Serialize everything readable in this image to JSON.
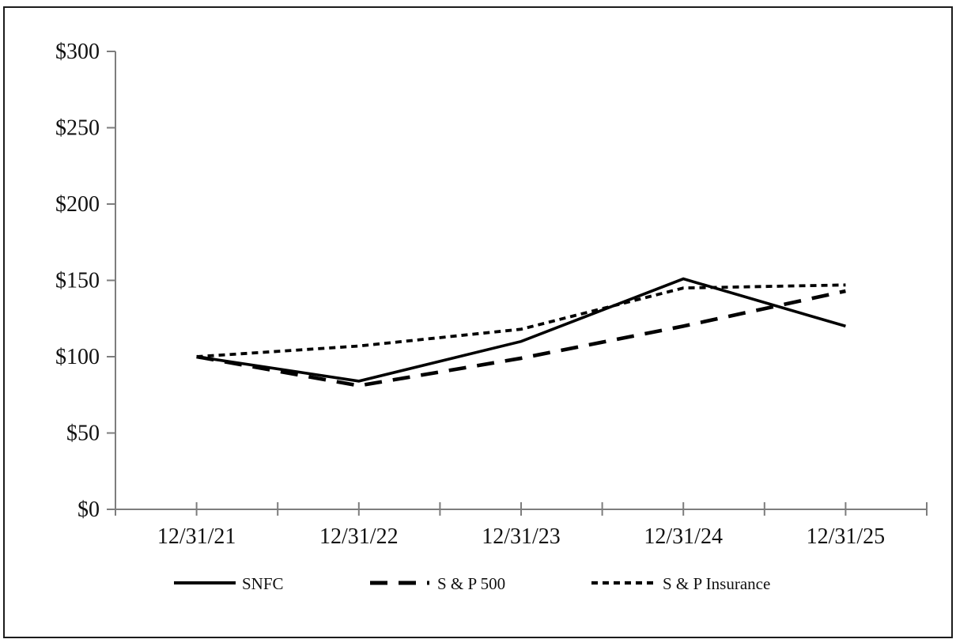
{
  "chart_data": {
    "type": "line",
    "title": "",
    "categories": [
      "12/31/21",
      "12/31/22",
      "12/31/23",
      "12/31/24",
      "12/31/25"
    ],
    "series": [
      {
        "name": "SNFC",
        "style": "solid",
        "values": [
          100,
          84,
          110,
          151,
          120
        ]
      },
      {
        "name": "S & P 500",
        "style": "long-dash",
        "values": [
          100,
          81,
          99,
          120,
          143
        ]
      },
      {
        "name": "S & P Insurance",
        "style": "short-dash",
        "values": [
          100,
          107,
          118,
          145,
          147
        ]
      }
    ],
    "y_axis": {
      "min": 0,
      "max": 300,
      "step": 50,
      "tick_labels": [
        "$0",
        "$50",
        "$100",
        "$150",
        "$200",
        "$250",
        "$300"
      ]
    },
    "x_axis": {
      "tick_labels": [
        "12/31/21",
        "12/31/22",
        "12/31/23",
        "12/31/24",
        "12/31/25"
      ]
    },
    "legend": {
      "position": "bottom",
      "entries": [
        "SNFC",
        "S & P 500",
        "S & P Insurance"
      ]
    },
    "grid": false,
    "colors": {
      "line": "#000000",
      "axis": "#7d7d7d",
      "text": "#111111",
      "background": "#ffffff",
      "frame_border": "#1c1c1c"
    },
    "ylim": [
      0,
      300
    ]
  }
}
